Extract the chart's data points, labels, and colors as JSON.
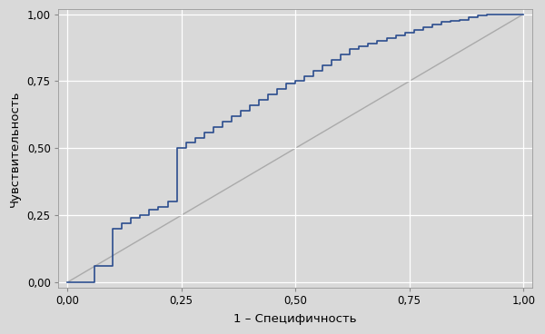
{
  "xlabel": "1 – Специфичность",
  "ylabel": "Чувствительность",
  "xlim": [
    -0.01,
    1.01
  ],
  "ylim": [
    -0.01,
    1.01
  ],
  "xticks": [
    0.0,
    0.25,
    0.5,
    0.75,
    1.0
  ],
  "yticks": [
    0.0,
    0.25,
    0.5,
    0.75,
    1.0
  ],
  "tick_labels": [
    "0,00",
    "0,25",
    "0,50",
    "0,75",
    "1,00"
  ],
  "background_color": "#d9d9d9",
  "plot_bg_color": "#d9d9d9",
  "roc_color": "#2b4d8e",
  "diag_color": "#aaaaaa",
  "grid_color": "#c0c0c0",
  "roc_x": [
    0.0,
    0.06,
    0.06,
    0.1,
    0.1,
    0.12,
    0.12,
    0.14,
    0.14,
    0.16,
    0.16,
    0.18,
    0.18,
    0.2,
    0.2,
    0.22,
    0.22,
    0.24,
    0.24,
    0.24,
    0.26,
    0.26,
    0.28,
    0.28,
    0.3,
    0.3,
    0.32,
    0.32,
    0.34,
    0.34,
    0.36,
    0.36,
    0.38,
    0.38,
    0.4,
    0.4,
    0.42,
    0.42,
    0.44,
    0.44,
    0.46,
    0.46,
    0.48,
    0.48,
    0.5,
    0.5,
    0.52,
    0.52,
    0.54,
    0.54,
    0.56,
    0.56,
    0.58,
    0.58,
    0.6,
    0.6,
    0.62,
    0.62,
    0.64,
    0.64,
    0.66,
    0.66,
    0.68,
    0.68,
    0.7,
    0.7,
    0.72,
    0.72,
    0.74,
    0.74,
    0.76,
    0.76,
    0.78,
    0.78,
    0.8,
    0.8,
    0.82,
    0.82,
    0.84,
    0.84,
    0.86,
    0.86,
    0.88,
    0.88,
    0.9,
    0.9,
    0.92,
    0.92,
    0.94,
    0.94,
    0.96,
    0.96,
    0.98,
    0.98,
    1.0
  ],
  "roc_y": [
    0.0,
    0.0,
    0.06,
    0.06,
    0.2,
    0.2,
    0.22,
    0.22,
    0.24,
    0.24,
    0.25,
    0.25,
    0.27,
    0.27,
    0.28,
    0.28,
    0.3,
    0.3,
    0.48,
    0.5,
    0.5,
    0.52,
    0.52,
    0.54,
    0.54,
    0.56,
    0.56,
    0.58,
    0.58,
    0.6,
    0.6,
    0.62,
    0.62,
    0.64,
    0.64,
    0.66,
    0.66,
    0.68,
    0.68,
    0.7,
    0.7,
    0.72,
    0.72,
    0.74,
    0.74,
    0.75,
    0.75,
    0.77,
    0.77,
    0.79,
    0.79,
    0.81,
    0.81,
    0.83,
    0.83,
    0.85,
    0.85,
    0.87,
    0.87,
    0.88,
    0.88,
    0.89,
    0.89,
    0.9,
    0.9,
    0.91,
    0.91,
    0.92,
    0.92,
    0.93,
    0.93,
    0.94,
    0.94,
    0.95,
    0.95,
    0.96,
    0.96,
    0.97,
    0.97,
    0.975,
    0.975,
    0.98,
    0.98,
    0.99,
    0.99,
    0.995,
    0.995,
    1.0,
    1.0,
    1.0,
    1.0,
    1.0,
    1.0,
    1.0,
    1.0
  ]
}
